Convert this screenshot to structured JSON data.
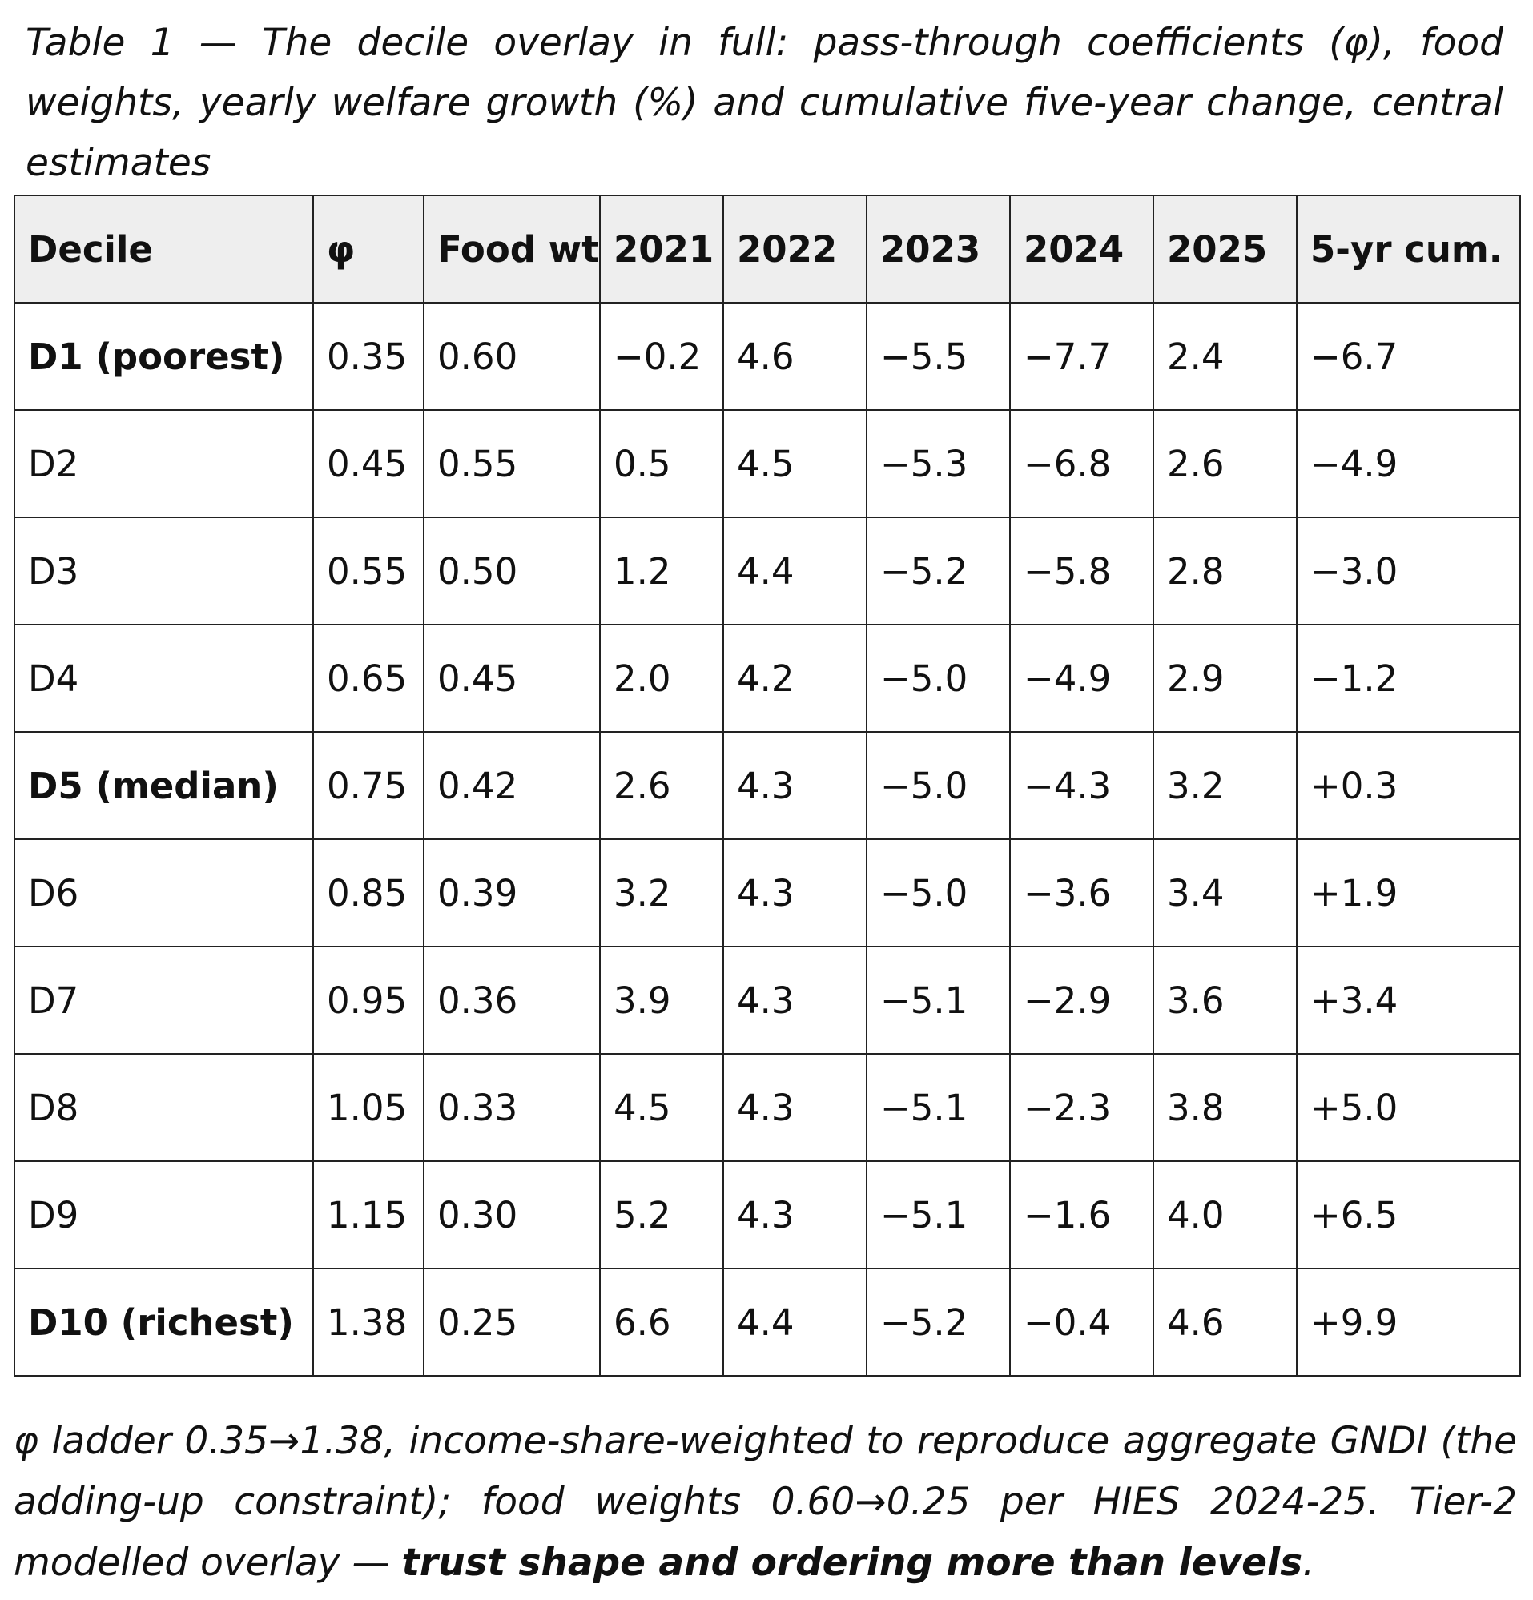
{
  "caption": "Table 1 — The decile overlay in full: pass-through coefficients (φ), food weights, yearly welfare growth (%) and cumulative five-year change, central estimates",
  "table": {
    "headers": [
      "Decile",
      "φ",
      "Food wt",
      "2021",
      "2022",
      "2023",
      "2024",
      "2025",
      "5-yr cum."
    ],
    "rows": [
      [
        "D1 (poorest)",
        "0.35",
        "0.60",
        "−0.2",
        "4.6",
        "−5.5",
        "−7.7",
        "2.4",
        "−6.7"
      ],
      [
        "D2",
        "0.45",
        "0.55",
        "0.5",
        "4.5",
        "−5.3",
        "−6.8",
        "2.6",
        "−4.9"
      ],
      [
        "D3",
        "0.55",
        "0.50",
        "1.2",
        "4.4",
        "−5.2",
        "−5.8",
        "2.8",
        "−3.0"
      ],
      [
        "D4",
        "0.65",
        "0.45",
        "2.0",
        "4.2",
        "−5.0",
        "−4.9",
        "2.9",
        "−1.2"
      ],
      [
        "D5 (median)",
        "0.75",
        "0.42",
        "2.6",
        "4.3",
        "−5.0",
        "−4.3",
        "3.2",
        "+0.3"
      ],
      [
        "D6",
        "0.85",
        "0.39",
        "3.2",
        "4.3",
        "−5.0",
        "−3.6",
        "3.4",
        "+1.9"
      ],
      [
        "D7",
        "0.95",
        "0.36",
        "3.9",
        "4.3",
        "−5.1",
        "−2.9",
        "3.6",
        "+3.4"
      ],
      [
        "D8",
        "1.05",
        "0.33",
        "4.5",
        "4.3",
        "−5.1",
        "−2.3",
        "3.8",
        "+5.0"
      ],
      [
        "D9",
        "1.15",
        "0.30",
        "5.2",
        "4.3",
        "−5.1",
        "−1.6",
        "4.0",
        "+6.5"
      ],
      [
        "D10 (richest)",
        "1.38",
        "0.25",
        "6.6",
        "4.4",
        "−5.2",
        "−0.4",
        "4.6",
        "+9.9"
      ]
    ]
  },
  "note": {
    "text": "φ ladder 0.35→1.38, income-share-weighted to reproduce aggregate GNDI (the adding-up constraint); food weights 0.60→0.25 per HIES 2024-25. Tier-2 modelled overlay — ",
    "emphasis": "trust shape and ordering more than levels",
    "end": "."
  }
}
